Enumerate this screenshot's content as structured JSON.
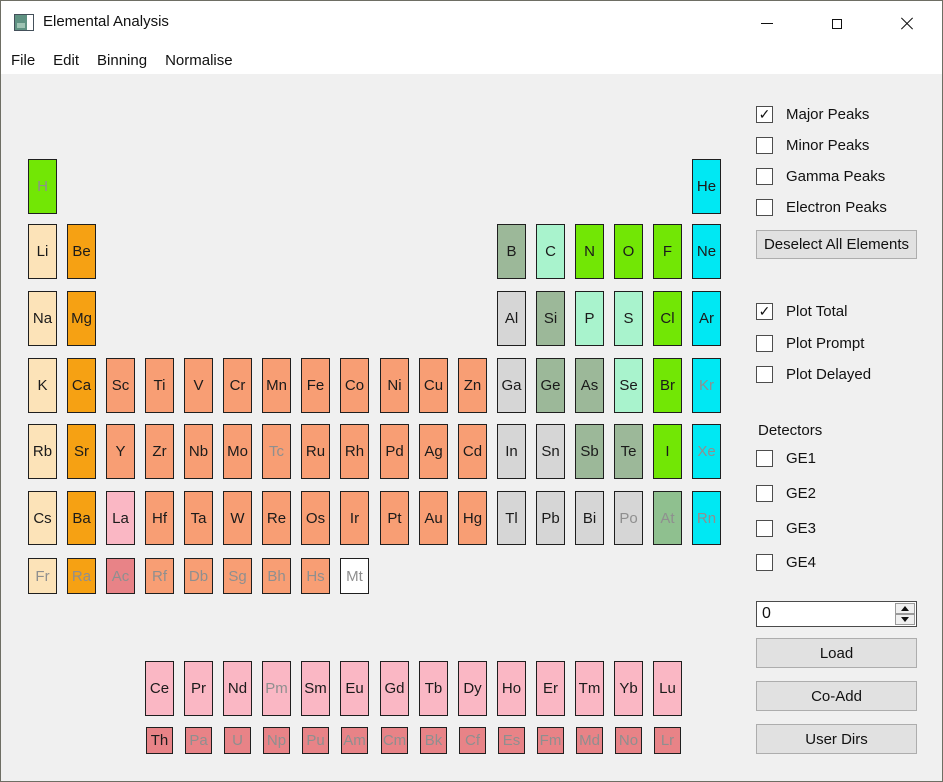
{
  "window": {
    "title": "Elemental Analysis",
    "controls": {
      "minimize": "minimize",
      "maximize": "maximize",
      "close": "close"
    }
  },
  "menu": {
    "items": [
      "File",
      "Edit",
      "Binning",
      "Normalise"
    ]
  },
  "panel": {
    "peaks": [
      {
        "label": "Major Peaks",
        "checked": true
      },
      {
        "label": "Minor Peaks",
        "checked": false
      },
      {
        "label": "Gamma Peaks",
        "checked": false
      },
      {
        "label": "Electron Peaks",
        "checked": false
      }
    ],
    "deselect_button": "Deselect All Elements",
    "plots": [
      {
        "label": "Plot Total",
        "checked": true
      },
      {
        "label": "Plot Prompt",
        "checked": false
      },
      {
        "label": "Plot Delayed",
        "checked": false
      }
    ],
    "detectors_label": "Detectors",
    "detectors": [
      {
        "label": "GE1",
        "checked": false
      },
      {
        "label": "GE2",
        "checked": false
      },
      {
        "label": "GE3",
        "checked": false
      },
      {
        "label": "GE4",
        "checked": false
      }
    ],
    "spinbox_value": "0",
    "action_buttons": [
      "Load",
      "Co-Add",
      "User Dirs"
    ]
  },
  "colors": {
    "green": "#72e705",
    "cyan": "#00e8f3",
    "mint": "#a9f3cd",
    "sage": "#9cb899",
    "sage2": "#8fc08f",
    "gray": "#d6d6d6",
    "peach": "#fce3b8",
    "orange": "#f6a113",
    "salmon": "#f89e74",
    "pink": "#fab7c4",
    "rose": "#e88387",
    "white": "#ffffff",
    "text": "#1b1b1b",
    "text_disabled": "#8f8f8f"
  },
  "periodic_table": {
    "elements": [
      {
        "s": "H",
        "c": 0,
        "r": "1",
        "k": "green",
        "d": true
      },
      {
        "s": "He",
        "c": 17,
        "r": "1",
        "k": "cyan",
        "d": false
      },
      {
        "s": "Li",
        "c": 0,
        "r": "2",
        "k": "peach",
        "d": false
      },
      {
        "s": "Be",
        "c": 1,
        "r": "2",
        "k": "orange",
        "d": false
      },
      {
        "s": "B",
        "c": 12,
        "r": "2",
        "k": "sage",
        "d": false
      },
      {
        "s": "C",
        "c": 13,
        "r": "2",
        "k": "mint",
        "d": false
      },
      {
        "s": "N",
        "c": 14,
        "r": "2",
        "k": "green",
        "d": false
      },
      {
        "s": "O",
        "c": 15,
        "r": "2",
        "k": "green",
        "d": false
      },
      {
        "s": "F",
        "c": 16,
        "r": "2",
        "k": "green",
        "d": false
      },
      {
        "s": "Ne",
        "c": 17,
        "r": "2",
        "k": "cyan",
        "d": false
      },
      {
        "s": "Na",
        "c": 0,
        "r": "3",
        "k": "peach",
        "d": false
      },
      {
        "s": "Mg",
        "c": 1,
        "r": "3",
        "k": "orange",
        "d": false
      },
      {
        "s": "Al",
        "c": 12,
        "r": "3",
        "k": "gray",
        "d": false
      },
      {
        "s": "Si",
        "c": 13,
        "r": "3",
        "k": "sage",
        "d": false
      },
      {
        "s": "P",
        "c": 14,
        "r": "3",
        "k": "mint",
        "d": false
      },
      {
        "s": "S",
        "c": 15,
        "r": "3",
        "k": "mint",
        "d": false
      },
      {
        "s": "Cl",
        "c": 16,
        "r": "3",
        "k": "green",
        "d": false
      },
      {
        "s": "Ar",
        "c": 17,
        "r": "3",
        "k": "cyan",
        "d": false
      },
      {
        "s": "K",
        "c": 0,
        "r": "4",
        "k": "peach",
        "d": false
      },
      {
        "s": "Ca",
        "c": 1,
        "r": "4",
        "k": "orange",
        "d": false
      },
      {
        "s": "Sc",
        "c": 2,
        "r": "4",
        "k": "salmon",
        "d": false
      },
      {
        "s": "Ti",
        "c": 3,
        "r": "4",
        "k": "salmon",
        "d": false
      },
      {
        "s": "V",
        "c": 4,
        "r": "4",
        "k": "salmon",
        "d": false
      },
      {
        "s": "Cr",
        "c": 5,
        "r": "4",
        "k": "salmon",
        "d": false
      },
      {
        "s": "Mn",
        "c": 6,
        "r": "4",
        "k": "salmon",
        "d": false
      },
      {
        "s": "Fe",
        "c": 7,
        "r": "4",
        "k": "salmon",
        "d": false
      },
      {
        "s": "Co",
        "c": 8,
        "r": "4",
        "k": "salmon",
        "d": false
      },
      {
        "s": "Ni",
        "c": 9,
        "r": "4",
        "k": "salmon",
        "d": false
      },
      {
        "s": "Cu",
        "c": 10,
        "r": "4",
        "k": "salmon",
        "d": false
      },
      {
        "s": "Zn",
        "c": 11,
        "r": "4",
        "k": "salmon",
        "d": false
      },
      {
        "s": "Ga",
        "c": 12,
        "r": "4",
        "k": "gray",
        "d": false
      },
      {
        "s": "Ge",
        "c": 13,
        "r": "4",
        "k": "sage",
        "d": false
      },
      {
        "s": "As",
        "c": 14,
        "r": "4",
        "k": "sage",
        "d": false
      },
      {
        "s": "Se",
        "c": 15,
        "r": "4",
        "k": "mint",
        "d": false
      },
      {
        "s": "Br",
        "c": 16,
        "r": "4",
        "k": "green",
        "d": false
      },
      {
        "s": "Kr",
        "c": 17,
        "r": "4",
        "k": "cyan",
        "d": true
      },
      {
        "s": "Rb",
        "c": 0,
        "r": "5",
        "k": "peach",
        "d": false
      },
      {
        "s": "Sr",
        "c": 1,
        "r": "5",
        "k": "orange",
        "d": false
      },
      {
        "s": "Y",
        "c": 2,
        "r": "5",
        "k": "salmon",
        "d": false
      },
      {
        "s": "Zr",
        "c": 3,
        "r": "5",
        "k": "salmon",
        "d": false
      },
      {
        "s": "Nb",
        "c": 4,
        "r": "5",
        "k": "salmon",
        "d": false
      },
      {
        "s": "Mo",
        "c": 5,
        "r": "5",
        "k": "salmon",
        "d": false
      },
      {
        "s": "Tc",
        "c": 6,
        "r": "5",
        "k": "salmon",
        "d": true
      },
      {
        "s": "Ru",
        "c": 7,
        "r": "5",
        "k": "salmon",
        "d": false
      },
      {
        "s": "Rh",
        "c": 8,
        "r": "5",
        "k": "salmon",
        "d": false
      },
      {
        "s": "Pd",
        "c": 9,
        "r": "5",
        "k": "salmon",
        "d": false
      },
      {
        "s": "Ag",
        "c": 10,
        "r": "5",
        "k": "salmon",
        "d": false
      },
      {
        "s": "Cd",
        "c": 11,
        "r": "5",
        "k": "salmon",
        "d": false
      },
      {
        "s": "In",
        "c": 12,
        "r": "5",
        "k": "gray",
        "d": false
      },
      {
        "s": "Sn",
        "c": 13,
        "r": "5",
        "k": "gray",
        "d": false
      },
      {
        "s": "Sb",
        "c": 14,
        "r": "5",
        "k": "sage",
        "d": false
      },
      {
        "s": "Te",
        "c": 15,
        "r": "5",
        "k": "sage",
        "d": false
      },
      {
        "s": "I",
        "c": 16,
        "r": "5",
        "k": "green",
        "d": false
      },
      {
        "s": "Xe",
        "c": 17,
        "r": "5",
        "k": "cyan",
        "d": true
      },
      {
        "s": "Cs",
        "c": 0,
        "r": "6",
        "k": "peach",
        "d": false
      },
      {
        "s": "Ba",
        "c": 1,
        "r": "6",
        "k": "orange",
        "d": false
      },
      {
        "s": "La",
        "c": 2,
        "r": "6",
        "k": "pink",
        "d": false
      },
      {
        "s": "Hf",
        "c": 3,
        "r": "6",
        "k": "salmon",
        "d": false
      },
      {
        "s": "Ta",
        "c": 4,
        "r": "6",
        "k": "salmon",
        "d": false
      },
      {
        "s": "W",
        "c": 5,
        "r": "6",
        "k": "salmon",
        "d": false
      },
      {
        "s": "Re",
        "c": 6,
        "r": "6",
        "k": "salmon",
        "d": false
      },
      {
        "s": "Os",
        "c": 7,
        "r": "6",
        "k": "salmon",
        "d": false
      },
      {
        "s": "Ir",
        "c": 8,
        "r": "6",
        "k": "salmon",
        "d": false
      },
      {
        "s": "Pt",
        "c": 9,
        "r": "6",
        "k": "salmon",
        "d": false
      },
      {
        "s": "Au",
        "c": 10,
        "r": "6",
        "k": "salmon",
        "d": false
      },
      {
        "s": "Hg",
        "c": 11,
        "r": "6",
        "k": "salmon",
        "d": false
      },
      {
        "s": "Tl",
        "c": 12,
        "r": "6",
        "k": "gray",
        "d": false
      },
      {
        "s": "Pb",
        "c": 13,
        "r": "6",
        "k": "gray",
        "d": false
      },
      {
        "s": "Bi",
        "c": 14,
        "r": "6",
        "k": "gray",
        "d": false
      },
      {
        "s": "Po",
        "c": 15,
        "r": "6",
        "k": "gray",
        "d": true
      },
      {
        "s": "At",
        "c": 16,
        "r": "6",
        "k": "sage2",
        "d": true
      },
      {
        "s": "Rn",
        "c": 17,
        "r": "6",
        "k": "cyan",
        "d": true
      },
      {
        "s": "Fr",
        "c": 0,
        "r": "7",
        "k": "peach",
        "d": true
      },
      {
        "s": "Ra",
        "c": 1,
        "r": "7",
        "k": "orange",
        "d": true
      },
      {
        "s": "Ac",
        "c": 2,
        "r": "7",
        "k": "rose",
        "d": true
      },
      {
        "s": "Rf",
        "c": 3,
        "r": "7",
        "k": "salmon",
        "d": true
      },
      {
        "s": "Db",
        "c": 4,
        "r": "7",
        "k": "salmon",
        "d": true
      },
      {
        "s": "Sg",
        "c": 5,
        "r": "7",
        "k": "salmon",
        "d": true
      },
      {
        "s": "Bh",
        "c": 6,
        "r": "7",
        "k": "salmon",
        "d": true
      },
      {
        "s": "Hs",
        "c": 7,
        "r": "7",
        "k": "salmon",
        "d": true
      },
      {
        "s": "Mt",
        "c": 8,
        "r": "7",
        "k": "white",
        "d": true
      },
      {
        "s": "Ce",
        "c": 3,
        "r": "L",
        "k": "pink",
        "d": false
      },
      {
        "s": "Pr",
        "c": 4,
        "r": "L",
        "k": "pink",
        "d": false
      },
      {
        "s": "Nd",
        "c": 5,
        "r": "L",
        "k": "pink",
        "d": false
      },
      {
        "s": "Pm",
        "c": 6,
        "r": "L",
        "k": "pink",
        "d": true
      },
      {
        "s": "Sm",
        "c": 7,
        "r": "L",
        "k": "pink",
        "d": false
      },
      {
        "s": "Eu",
        "c": 8,
        "r": "L",
        "k": "pink",
        "d": false
      },
      {
        "s": "Gd",
        "c": 9,
        "r": "L",
        "k": "pink",
        "d": false
      },
      {
        "s": "Tb",
        "c": 10,
        "r": "L",
        "k": "pink",
        "d": false
      },
      {
        "s": "Dy",
        "c": 11,
        "r": "L",
        "k": "pink",
        "d": false
      },
      {
        "s": "Ho",
        "c": 12,
        "r": "L",
        "k": "pink",
        "d": false
      },
      {
        "s": "Er",
        "c": 13,
        "r": "L",
        "k": "pink",
        "d": false
      },
      {
        "s": "Tm",
        "c": 14,
        "r": "L",
        "k": "pink",
        "d": false
      },
      {
        "s": "Yb",
        "c": 15,
        "r": "L",
        "k": "pink",
        "d": false
      },
      {
        "s": "Lu",
        "c": 16,
        "r": "L",
        "k": "pink",
        "d": false
      },
      {
        "s": "Th",
        "c": 3,
        "r": "A",
        "k": "rose",
        "d": false
      },
      {
        "s": "Pa",
        "c": 4,
        "r": "A",
        "k": "rose",
        "d": true
      },
      {
        "s": "U",
        "c": 5,
        "r": "A",
        "k": "rose",
        "d": true
      },
      {
        "s": "Np",
        "c": 6,
        "r": "A",
        "k": "rose",
        "d": true
      },
      {
        "s": "Pu",
        "c": 7,
        "r": "A",
        "k": "rose",
        "d": true
      },
      {
        "s": "Am",
        "c": 8,
        "r": "A",
        "k": "rose",
        "d": true
      },
      {
        "s": "Cm",
        "c": 9,
        "r": "A",
        "k": "rose",
        "d": true
      },
      {
        "s": "Bk",
        "c": 10,
        "r": "A",
        "k": "rose",
        "d": true
      },
      {
        "s": "Cf",
        "c": 11,
        "r": "A",
        "k": "rose",
        "d": true
      },
      {
        "s": "Es",
        "c": 12,
        "r": "A",
        "k": "rose",
        "d": true
      },
      {
        "s": "Fm",
        "c": 13,
        "r": "A",
        "k": "rose",
        "d": true
      },
      {
        "s": "Md",
        "c": 14,
        "r": "A",
        "k": "rose",
        "d": true
      },
      {
        "s": "No",
        "c": 15,
        "r": "A",
        "k": "rose",
        "d": true
      },
      {
        "s": "Lr",
        "c": 16,
        "r": "A",
        "k": "rose",
        "d": true
      }
    ]
  }
}
